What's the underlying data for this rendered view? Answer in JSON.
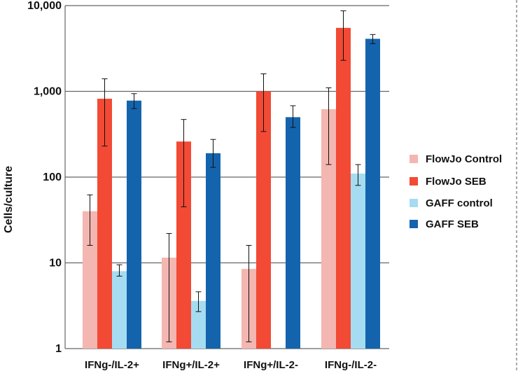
{
  "chart_data": {
    "type": "bar",
    "scale": "log",
    "ylabel": "Cells/culture",
    "xlabel": "",
    "title": "",
    "ylim": [
      1,
      10000
    ],
    "yticks": [
      {
        "value": 1,
        "label": "1"
      },
      {
        "value": 10,
        "label": "10"
      },
      {
        "value": 100,
        "label": "100"
      },
      {
        "value": 1000,
        "label": "1,000"
      },
      {
        "value": 10000,
        "label": "10,000"
      }
    ],
    "grid": true,
    "legend_position": "right",
    "categories": [
      "IFNg-/IL-2+",
      "IFNg+/IL-2+",
      "IFNg+/IL-2-",
      "IFNg-/IL-2-"
    ],
    "series": [
      {
        "name": "FlowJo Control",
        "color": "#f4b6b0",
        "values": [
          40,
          11.5,
          8.5,
          620
        ],
        "err_low": [
          16,
          1.2,
          1.2,
          140
        ],
        "err_high": [
          62,
          22,
          16,
          1100
        ]
      },
      {
        "name": "FlowJo SEB",
        "color": "#f24a35",
        "values": [
          820,
          260,
          1000,
          5500
        ],
        "err_low": [
          230,
          45,
          340,
          2300
        ],
        "err_high": [
          1400,
          470,
          1600,
          8700
        ]
      },
      {
        "name": "GAFF control",
        "color": "#a6dcf1",
        "values": [
          8,
          3.6,
          null,
          110
        ],
        "err_low": [
          7,
          2.7,
          null,
          80
        ],
        "err_high": [
          9.5,
          4.6,
          null,
          140
        ]
      },
      {
        "name": "GAFF SEB",
        "color": "#1464ad",
        "values": [
          780,
          190,
          500,
          4100
        ],
        "err_low": [
          630,
          130,
          380,
          3600
        ],
        "err_high": [
          940,
          275,
          680,
          4600
        ]
      }
    ]
  }
}
